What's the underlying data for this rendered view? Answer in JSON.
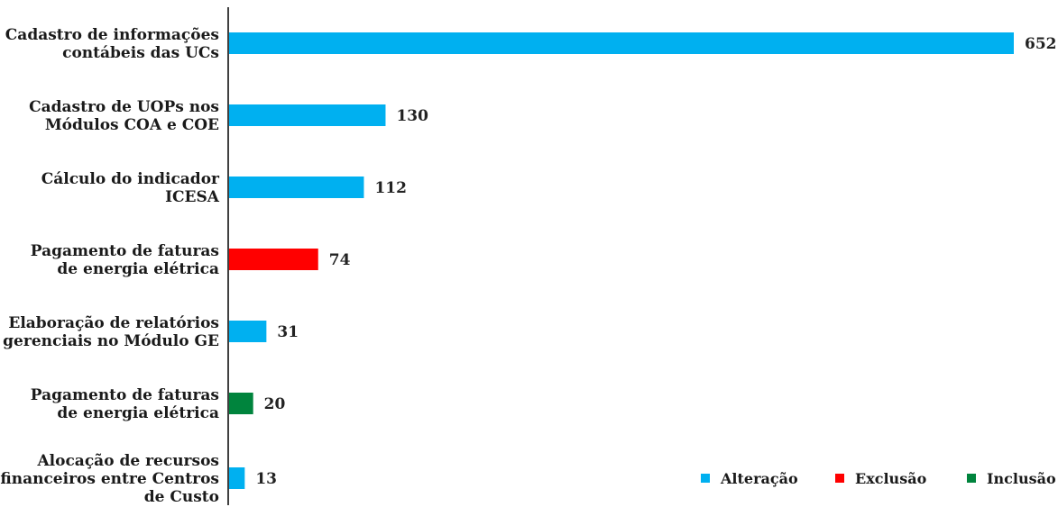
{
  "chart_data": {
    "type": "bar",
    "orientation": "horizontal",
    "categories": [
      [
        "Cadastro de informações",
        "contábeis das UCs"
      ],
      [
        "Cadastro de UOPs nos",
        "Módulos COA e COE"
      ],
      [
        "Cálculo do indicador",
        "ICESA"
      ],
      [
        "Pagamento de faturas",
        "de energia elétrica"
      ],
      [
        "Elaboração de relatórios",
        "gerenciais no Módulo GE"
      ],
      [
        "Pagamento de faturas",
        "de energia elétrica"
      ],
      [
        "Alocação de recursos",
        "financeiros entre Centros",
        "de Custo"
      ]
    ],
    "values": [
      652,
      130,
      112,
      74,
      31,
      20,
      13
    ],
    "series_of_bar": [
      "Alteração",
      "Alteração",
      "Alteração",
      "Exclusão",
      "Alteração",
      "Inclusão",
      "Alteração"
    ],
    "legend": [
      {
        "name": "Alteração",
        "color": "#00b0f0"
      },
      {
        "name": "Exclusão",
        "color": "#ff0000"
      },
      {
        "name": "Inclusão",
        "color": "#00843d"
      }
    ],
    "legend_position": "bottom-right",
    "xlim": [
      0,
      652
    ],
    "grid": false,
    "title": "",
    "xlabel": "",
    "ylabel": ""
  }
}
